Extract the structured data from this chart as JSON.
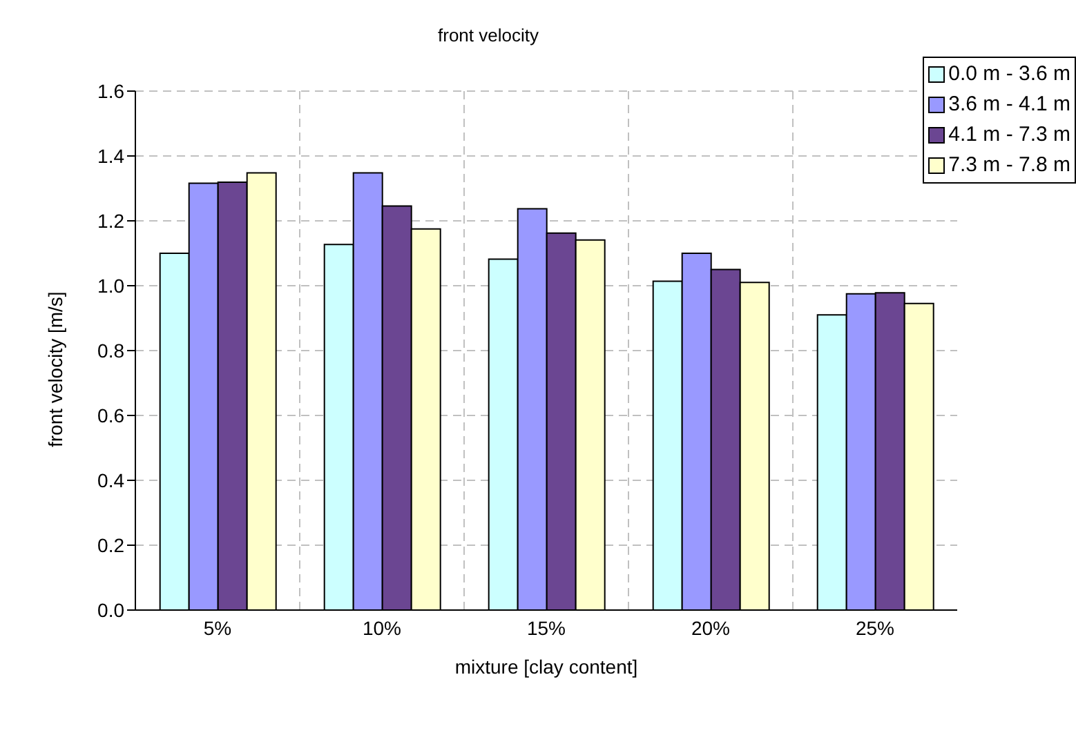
{
  "chart_data": {
    "type": "bar",
    "title": "front velocity",
    "xlabel": "mixture [clay content]",
    "ylabel": "front velocity [m/s]",
    "categories": [
      "5%",
      "10%",
      "15%",
      "20%",
      "25%"
    ],
    "series": [
      {
        "name": "0.0 m - 3.6 m",
        "color": "#ccffff",
        "values": [
          1.1,
          1.127,
          1.082,
          1.014,
          0.91
        ]
      },
      {
        "name": "3.6 m - 4.1 m",
        "color": "#9999ff",
        "values": [
          1.316,
          1.348,
          1.237,
          1.1,
          0.975
        ]
      },
      {
        "name": "4.1 m - 7.3 m",
        "color": "#6b4692",
        "values": [
          1.319,
          1.246,
          1.162,
          1.05,
          0.978
        ]
      },
      {
        "name": "7.3 m - 7.8 m",
        "color": "#ffffcc",
        "values": [
          1.348,
          1.175,
          1.141,
          1.01,
          0.945
        ]
      }
    ],
    "ylim": [
      0,
      1.6
    ],
    "yticks": [
      {
        "value": 0,
        "label": "0.0"
      },
      {
        "value": 0.2,
        "label": "0.2"
      },
      {
        "value": 0.4,
        "label": "0.4"
      },
      {
        "value": 0.6,
        "label": "0.6"
      },
      {
        "value": 0.8,
        "label": "0.8"
      },
      {
        "value": 1,
        "label": "1.0"
      },
      {
        "value": 1.2,
        "label": "1.2"
      },
      {
        "value": 1.4,
        "label": "1.4"
      },
      {
        "value": 1.6,
        "label": "1.6"
      }
    ],
    "grid": true,
    "legend": "top right"
  }
}
